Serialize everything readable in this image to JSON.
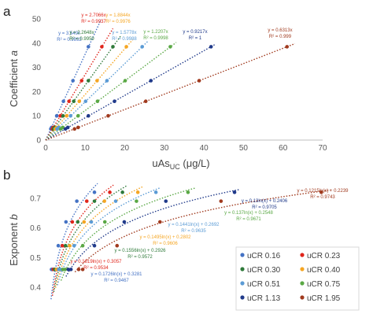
{
  "figure": {
    "labels": {
      "a": "a",
      "b": "b"
    }
  },
  "series_colors": {
    "uCR 0.16": "#4472c4",
    "uCR 0.23": "#e0251b",
    "uCR 0.30": "#2f7a3a",
    "uCR 0.40": "#f5a623",
    "uCR 0.51": "#5b9bd5",
    "uCR 0.75": "#5aa845",
    "uCR 1.13": "#203a8a",
    "uCR 1.95": "#a03a1e"
  },
  "chart_data": [
    {
      "type": "scatter",
      "panel": "a",
      "title": "",
      "xlabel": "uAs",
      "xlabel_sub": "UC",
      "xlabel_unit": " (μg/L)",
      "ylabel": "Coefficient ",
      "ylabel_symbol": "a",
      "xlim": [
        0,
        70
      ],
      "ylim": [
        0,
        50
      ],
      "xticks": [
        0,
        10,
        20,
        30,
        40,
        50,
        60,
        70
      ],
      "yticks": [
        0,
        10,
        20,
        30,
        40,
        50
      ],
      "grid": false,
      "y_levels": [
        4.6,
        5.2,
        10,
        16,
        24.5,
        38.5
      ],
      "series": [
        {
          "name": "uCR 0.16",
          "slope": 3.549,
          "x": [
            1.3,
            1.5,
            2.8,
            4.5,
            6.9,
            10.8
          ],
          "trend_x": [
            0,
            14
          ],
          "eq": "y = 3.549x",
          "r2": "R² = 0.9892"
        },
        {
          "name": "uCR 0.23",
          "slope": 2.7066,
          "x": [
            1.7,
            1.9,
            3.7,
            5.9,
            9.1,
            14.2
          ],
          "trend_x": [
            0,
            17
          ],
          "eq": "y = 2.7066x",
          "r2": "R² = 0.9937"
        },
        {
          "name": "uCR 0.30",
          "slope": 2.2648,
          "x": [
            2.0,
            2.3,
            4.4,
            7.1,
            10.8,
            17.0
          ],
          "trend_x": [
            0,
            19
          ],
          "eq": "y = 2.2648x",
          "r2": "R² = 0.9959"
        },
        {
          "name": "uCR 0.40",
          "slope": 1.8844,
          "x": [
            2.4,
            2.8,
            5.3,
            8.5,
            13.0,
            20.4
          ],
          "trend_x": [
            0,
            22
          ],
          "eq": "y = 1.8844x",
          "r2": "R² = 0.9976"
        },
        {
          "name": "uCR 0.51",
          "slope": 1.5778,
          "x": [
            2.9,
            3.3,
            6.3,
            10.1,
            15.5,
            24.4
          ],
          "trend_x": [
            0,
            26
          ],
          "eq": "y = 1.5778x",
          "r2": "R² = 0.9988"
        },
        {
          "name": "uCR 0.75",
          "slope": 1.2207,
          "x": [
            3.8,
            4.3,
            8.2,
            13.1,
            20.1,
            31.5
          ],
          "trend_x": [
            0,
            33
          ],
          "eq": "y = 1.2207x",
          "r2": "R² = 0.9998"
        },
        {
          "name": "uCR 1.13",
          "slope": 0.9217,
          "x": [
            5.0,
            5.6,
            10.8,
            17.4,
            26.6,
            41.8
          ],
          "trend_x": [
            0,
            43
          ],
          "eq": "y = 0.9217x",
          "r2": "R² = 1"
        },
        {
          "name": "uCR 1.95",
          "slope": 0.6313,
          "x": [
            7.3,
            8.2,
            15.8,
            25.3,
            38.8,
            61.0
          ],
          "trend_x": [
            0,
            63
          ],
          "eq": "y = 0.6313x",
          "r2": "R² = 0.999"
        }
      ]
    },
    {
      "type": "scatter",
      "panel": "b",
      "title": "",
      "xlabel": "",
      "ylabel": "Exponent ",
      "ylabel_symbol": "b",
      "xlim": [
        0,
        70
      ],
      "ylim": [
        0.4,
        0.75
      ],
      "yticks": [
        0.4,
        0.5,
        0.6,
        0.7
      ],
      "ytick_labels": [
        "0.4",
        "0.5",
        "0.6",
        "0.7"
      ],
      "grid": false,
      "y_levels": [
        0.46,
        0.46,
        0.54,
        0.62,
        0.69,
        0.72
      ],
      "series": [
        {
          "name": "uCR 0.16",
          "a": 0.1726,
          "b": 0.3281,
          "x": [
            1.3,
            1.5,
            2.8,
            4.5,
            6.9,
            10.8
          ],
          "trend_x": [
            1.2,
            11.5
          ],
          "eq": "y = 0.1726ln(x) + 0.3281",
          "r2": "R² = 0.9467"
        },
        {
          "name": "uCR 0.23",
          "a": 0.1619,
          "b": 0.3057,
          "x": [
            1.7,
            1.9,
            3.7,
            5.9,
            9.1,
            14.2
          ],
          "trend_x": [
            1.5,
            15.0
          ],
          "eq": "y = 0.1619ln(x) + 0.3057",
          "r2": "R² = 0.9534"
        },
        {
          "name": "uCR 0.30",
          "a": 0.1556,
          "b": 0.2926,
          "x": [
            2.0,
            2.3,
            4.4,
            7.1,
            10.8,
            17.0
          ],
          "trend_x": [
            1.8,
            18.0
          ],
          "eq": "y = 0.1556ln(x) + 0.2926",
          "r2": "R² = 0.9572"
        },
        {
          "name": "uCR 0.40",
          "a": 0.1495,
          "b": 0.2802,
          "x": [
            2.4,
            2.8,
            5.3,
            8.5,
            13.0,
            20.4
          ],
          "trend_x": [
            2.2,
            21.5
          ],
          "eq": "y = 0.1495ln(x) + 0.2802",
          "r2": "R² = 0.9606"
        },
        {
          "name": "uCR 0.51",
          "a": 0.1441,
          "b": 0.2692,
          "x": [
            2.9,
            3.3,
            6.3,
            10.1,
            15.5,
            24.4
          ],
          "trend_x": [
            2.6,
            25.5
          ],
          "eq": "y = 0.1441ln(x) + 0.2692",
          "r2": "R² = 0.9635"
        },
        {
          "name": "uCR 0.75",
          "a": 0.137,
          "b": 0.2548,
          "x": [
            3.8,
            4.3,
            8.2,
            13.1,
            20.1,
            31.5
          ],
          "trend_x": [
            3.4,
            33.0
          ],
          "eq": "y = 0.137ln(x) + 0.2548",
          "r2": "R² = 0.9671"
        },
        {
          "name": "uCR 1.13",
          "a": 0.13,
          "b": 0.2406,
          "x": [
            5.0,
            5.6,
            10.8,
            17.4,
            26.6,
            41.8
          ],
          "trend_x": [
            4.5,
            43.0
          ],
          "eq": "y = 0.13ln(x) + 0.2406",
          "r2": "R² = 0.9705"
        },
        {
          "name": "uCR 1.95",
          "a": 0.1215,
          "b": 0.2239,
          "x": [
            7.3,
            8.2,
            15.8,
            25.3,
            38.8,
            61.0
          ],
          "trend_x": [
            6.5,
            63.0
          ],
          "eq": "y = 0.1215ln(x) + 0.2239",
          "r2": "R² = 0.9743"
        }
      ]
    }
  ],
  "legend": {
    "placement": "bottom-right",
    "items": [
      "uCR 0.16",
      "uCR 0.23",
      "uCR 0.30",
      "uCR 0.40",
      "uCR 0.51",
      "uCR 0.75",
      "uCR 1.13",
      "uCR 1.95"
    ]
  }
}
